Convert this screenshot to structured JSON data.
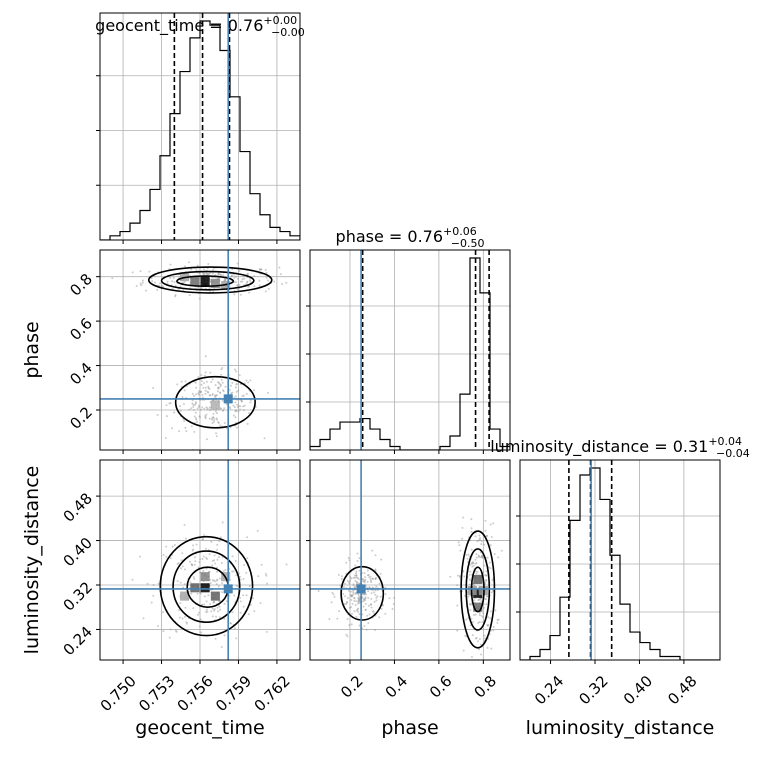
{
  "chart_data": {
    "type": "corner",
    "parameters": [
      "geocent_time",
      "phase",
      "luminosity_distance"
    ],
    "titles": [
      {
        "param": "geocent_time",
        "value": "0.76",
        "plus": "+0.00",
        "minus": "−0.00"
      },
      {
        "param": "phase",
        "value": "0.76",
        "plus": "+0.06",
        "minus": "−0.50"
      },
      {
        "param": "luminosity_distance",
        "value": "0.31",
        "plus": "+0.04",
        "minus": "−0.04"
      }
    ],
    "injection": {
      "geocent_time": 0.7582,
      "phase": 0.25,
      "luminosity_distance": 0.313
    },
    "ranges": {
      "geocent_time": [
        0.7482,
        0.7638
      ],
      "phase": [
        0.02,
        0.92
      ],
      "luminosity_distance": [
        0.185,
        0.545
      ]
    },
    "ticks": {
      "geocent_time": [
        "0.750",
        "0.753",
        "0.756",
        "0.759",
        "0.762"
      ],
      "phase": [
        "0.2",
        "0.4",
        "0.6",
        "0.8"
      ],
      "luminosity_distance": [
        "0.24",
        "0.32",
        "0.40",
        "0.48"
      ]
    },
    "quantiles": {
      "geocent_time": [
        0.754,
        0.7562,
        0.7583
      ],
      "phase": [
        0.257,
        0.765,
        0.826
      ],
      "luminosity_distance": [
        0.273,
        0.312,
        0.35
      ]
    },
    "histograms": {
      "geocent_time": {
        "edges_start": 0.7482,
        "bin_width": 0.00078,
        "counts": [
          0,
          1,
          2,
          4,
          7,
          12,
          20,
          30,
          40,
          48,
          52,
          51,
          45,
          34,
          21,
          11,
          6,
          3,
          2,
          1
        ]
      },
      "phase": {
        "edges_start": 0.02,
        "bin_width": 0.045,
        "counts": [
          1,
          3,
          6,
          8,
          8,
          9,
          6,
          3,
          1,
          0,
          0,
          0,
          0,
          1,
          4,
          16,
          55,
          45,
          6,
          1
        ]
      },
      "luminosity_distance": {
        "edges_start": 0.185,
        "bin_width": 0.018,
        "counts": [
          0,
          1,
          3,
          7,
          18,
          40,
          53,
          55,
          46,
          30,
          16,
          8,
          5,
          3,
          1,
          1,
          0,
          0,
          0,
          0
        ]
      }
    },
    "contours": {
      "phase_vs_geocent_time": [
        {
          "cx": 0.7568,
          "cy": 0.785,
          "rx": 0.0048,
          "ry": 0.058
        },
        {
          "cx": 0.7566,
          "cy": 0.782,
          "rx": 0.0036,
          "ry": 0.041
        },
        {
          "cx": 0.7564,
          "cy": 0.78,
          "rx": 0.0022,
          "ry": 0.023
        },
        {
          "cx": 0.7572,
          "cy": 0.235,
          "rx": 0.0031,
          "ry": 0.115
        }
      ],
      "luminosity_distance_vs_geocent_time": [
        {
          "cx": 0.7565,
          "cy": 0.318,
          "rx": 0.0036,
          "ry": 0.089
        },
        {
          "cx": 0.7565,
          "cy": 0.317,
          "rx": 0.0026,
          "ry": 0.064
        },
        {
          "cx": 0.7566,
          "cy": 0.316,
          "rx": 0.0016,
          "ry": 0.036
        }
      ],
      "luminosity_distance_vs_phase": [
        {
          "cx": 0.775,
          "cy": 0.312,
          "rx": 0.075,
          "ry": 0.105
        },
        {
          "cx": 0.775,
          "cy": 0.312,
          "rx": 0.052,
          "ry": 0.073
        },
        {
          "cx": 0.775,
          "cy": 0.312,
          "rx": 0.028,
          "ry": 0.04
        },
        {
          "cx": 0.255,
          "cy": 0.305,
          "rx": 0.095,
          "ry": 0.048
        }
      ]
    },
    "density_cells": {
      "phase_vs_geocent_time": [
        {
          "x": 0.7564,
          "y": 0.78,
          "level": 1.0
        },
        {
          "x": 0.7556,
          "y": 0.78,
          "level": 0.55
        },
        {
          "x": 0.7572,
          "y": 0.77,
          "level": 0.45
        },
        {
          "x": 0.7548,
          "y": 0.8,
          "level": 0.3
        },
        {
          "x": 0.758,
          "y": 0.76,
          "level": 0.3
        },
        {
          "x": 0.7572,
          "y": 0.22,
          "level": 0.25
        }
      ],
      "luminosity_distance_vs_geocent_time": [
        {
          "x": 0.7564,
          "y": 0.315,
          "level": 1.0
        },
        {
          "x": 0.7556,
          "y": 0.315,
          "level": 0.6
        },
        {
          "x": 0.7572,
          "y": 0.3,
          "level": 0.6
        },
        {
          "x": 0.7564,
          "y": 0.335,
          "level": 0.45
        },
        {
          "x": 0.7548,
          "y": 0.3,
          "level": 0.3
        },
        {
          "x": 0.758,
          "y": 0.335,
          "level": 0.3
        }
      ],
      "luminosity_distance_vs_phase": [
        {
          "x": 0.775,
          "y": 0.305,
          "level": 1.0
        },
        {
          "x": 0.775,
          "y": 0.33,
          "level": 0.6
        },
        {
          "x": 0.775,
          "y": 0.28,
          "level": 0.55
        },
        {
          "x": 0.75,
          "y": 0.31,
          "level": 0.35
        },
        {
          "x": 0.8,
          "y": 0.31,
          "level": 0.35
        }
      ]
    },
    "colors": {
      "injection": "#4682b4",
      "hist": "#000000",
      "contour": "#000000",
      "grid": "#b0b0b0",
      "scatter": "#9a9a9a"
    }
  }
}
